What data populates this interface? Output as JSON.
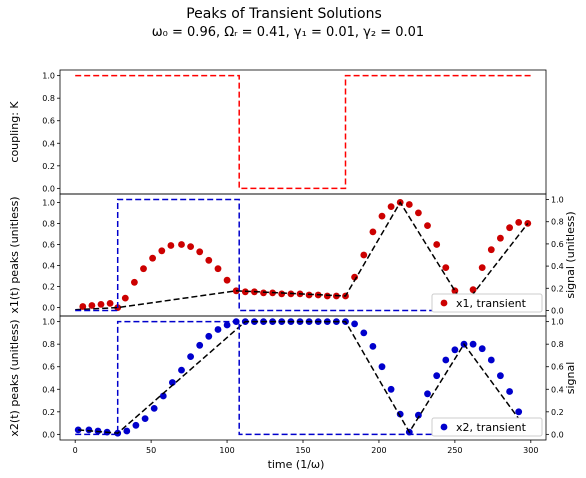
{
  "chart_data": {
    "type": "line",
    "title": "Peaks of Transient Solutions",
    "subtitle": "ω₀ = 0.96, Ωᵣ = 0.41, γ₁ = 0.01, γ₂ = 0.01",
    "shared_xlabel": "time (1/ω)",
    "xlim": [
      -10,
      310
    ],
    "xticks": [
      0,
      50,
      100,
      150,
      200,
      250,
      300
    ],
    "panels": [
      {
        "ylabel": "coupling: K",
        "ylim": [
          -0.05,
          1.05
        ],
        "yticks": [
          "0.0",
          "0.2",
          "0.4",
          "0.6",
          "0.8",
          "1.0"
        ],
        "series": [
          {
            "style": "dashed",
            "color": "#ff0000",
            "x": [
              0,
              108,
              108,
              178,
              178,
              300
            ],
            "y": [
              1,
              1,
              0,
              0,
              1,
              1
            ]
          }
        ]
      },
      {
        "ylabel": "x1(t) peaks (unitless)",
        "ylabel_right": "signal (unitless)",
        "ylim": [
          -0.08,
          1.08
        ],
        "yticks": [
          "0.0",
          "0.2",
          "0.4",
          "0.6",
          "0.8",
          "1.0"
        ],
        "legend": {
          "label": "x1, transient",
          "placement": "lower-right"
        },
        "series": [
          {
            "name": "x1, transient",
            "style": "markers",
            "color": "#cc0000",
            "x": [
              5,
              11,
              17,
              23,
              28,
              33,
              39,
              45,
              51,
              57,
              63,
              70,
              76,
              82,
              88,
              94,
              100,
              106,
              112,
              118,
              124,
              130,
              136,
              142,
              148,
              154,
              160,
              166,
              172,
              178,
              184,
              190,
              196,
              202,
              208,
              214,
              220,
              226,
              232,
              238,
              244,
              250,
              256,
              262,
              268,
              274,
              280,
              286,
              292,
              298
            ],
            "y": [
              0.01,
              0.02,
              0.03,
              0.04,
              0.0,
              0.09,
              0.24,
              0.37,
              0.47,
              0.54,
              0.59,
              0.6,
              0.58,
              0.53,
              0.45,
              0.37,
              0.26,
              0.16,
              0.15,
              0.15,
              0.14,
              0.14,
              0.13,
              0.13,
              0.13,
              0.12,
              0.12,
              0.11,
              0.11,
              0.11,
              0.29,
              0.5,
              0.72,
              0.87,
              0.96,
              1.0,
              0.98,
              0.9,
              0.78,
              0.6,
              0.38,
              0.16,
              0.02,
              0.17,
              0.38,
              0.55,
              0.66,
              0.76,
              0.81,
              0.8
            ]
          },
          {
            "style": "dashed",
            "color": "#000000",
            "x": [
              0,
              28,
              106,
              178,
              214,
              250,
              256,
              298
            ],
            "y": [
              -0.02,
              0.0,
              0.16,
              0.11,
              1.0,
              0.16,
              0.02,
              0.8
            ]
          },
          {
            "style": "dashed",
            "color": "#0000cc",
            "axis": "right",
            "x": [
              0,
              28,
              28,
              108,
              108,
              300
            ],
            "y": [
              0,
              0,
              1,
              1,
              0,
              0
            ]
          }
        ]
      },
      {
        "ylabel": "x2(t) peaks (unitless)",
        "ylabel_right": "signal",
        "ylim": [
          -0.05,
          1.05
        ],
        "yticks": [
          "0.0",
          "0.2",
          "0.4",
          "0.6",
          "0.8",
          "1.0"
        ],
        "legend": {
          "label": "x2, transient",
          "placement": "lower-right"
        },
        "series": [
          {
            "name": "x2, transient",
            "style": "markers",
            "color": "#0000cc",
            "x": [
              2,
              9,
              15,
              21,
              28,
              34,
              40,
              46,
              52,
              58,
              64,
              70,
              76,
              82,
              88,
              94,
              100,
              106,
              112,
              118,
              124,
              130,
              136,
              142,
              148,
              154,
              160,
              166,
              172,
              178,
              184,
              190,
              196,
              202,
              208,
              214,
              220,
              226,
              232,
              238,
              244,
              250,
              256,
              262,
              268,
              274,
              280,
              286,
              292,
              298
            ],
            "y": [
              0.04,
              0.04,
              0.03,
              0.02,
              0.01,
              0.03,
              0.08,
              0.14,
              0.23,
              0.34,
              0.46,
              0.57,
              0.69,
              0.79,
              0.87,
              0.93,
              0.97,
              1.0,
              1.0,
              1.0,
              1.0,
              1.0,
              1.0,
              1.0,
              1.0,
              1.0,
              1.0,
              1.0,
              1.0,
              1.0,
              0.98,
              0.9,
              0.78,
              0.6,
              0.4,
              0.18,
              0.02,
              0.17,
              0.36,
              0.52,
              0.66,
              0.75,
              0.8,
              0.8,
              0.76,
              0.66,
              0.52,
              0.38,
              0.2,
              0.03
            ]
          },
          {
            "style": "dashed",
            "color": "#000000",
            "x": [
              2,
              28,
              112,
              178,
              220,
              256,
              298
            ],
            "y": [
              0.04,
              0.01,
              1.0,
              1.0,
              0.02,
              0.8,
              0.03
            ]
          },
          {
            "style": "dashed",
            "color": "#0000cc",
            "axis": "right",
            "x": [
              0,
              28,
              28,
              108,
              108,
              300
            ],
            "y": [
              0,
              0,
              1,
              1,
              0,
              0
            ]
          }
        ]
      }
    ]
  }
}
